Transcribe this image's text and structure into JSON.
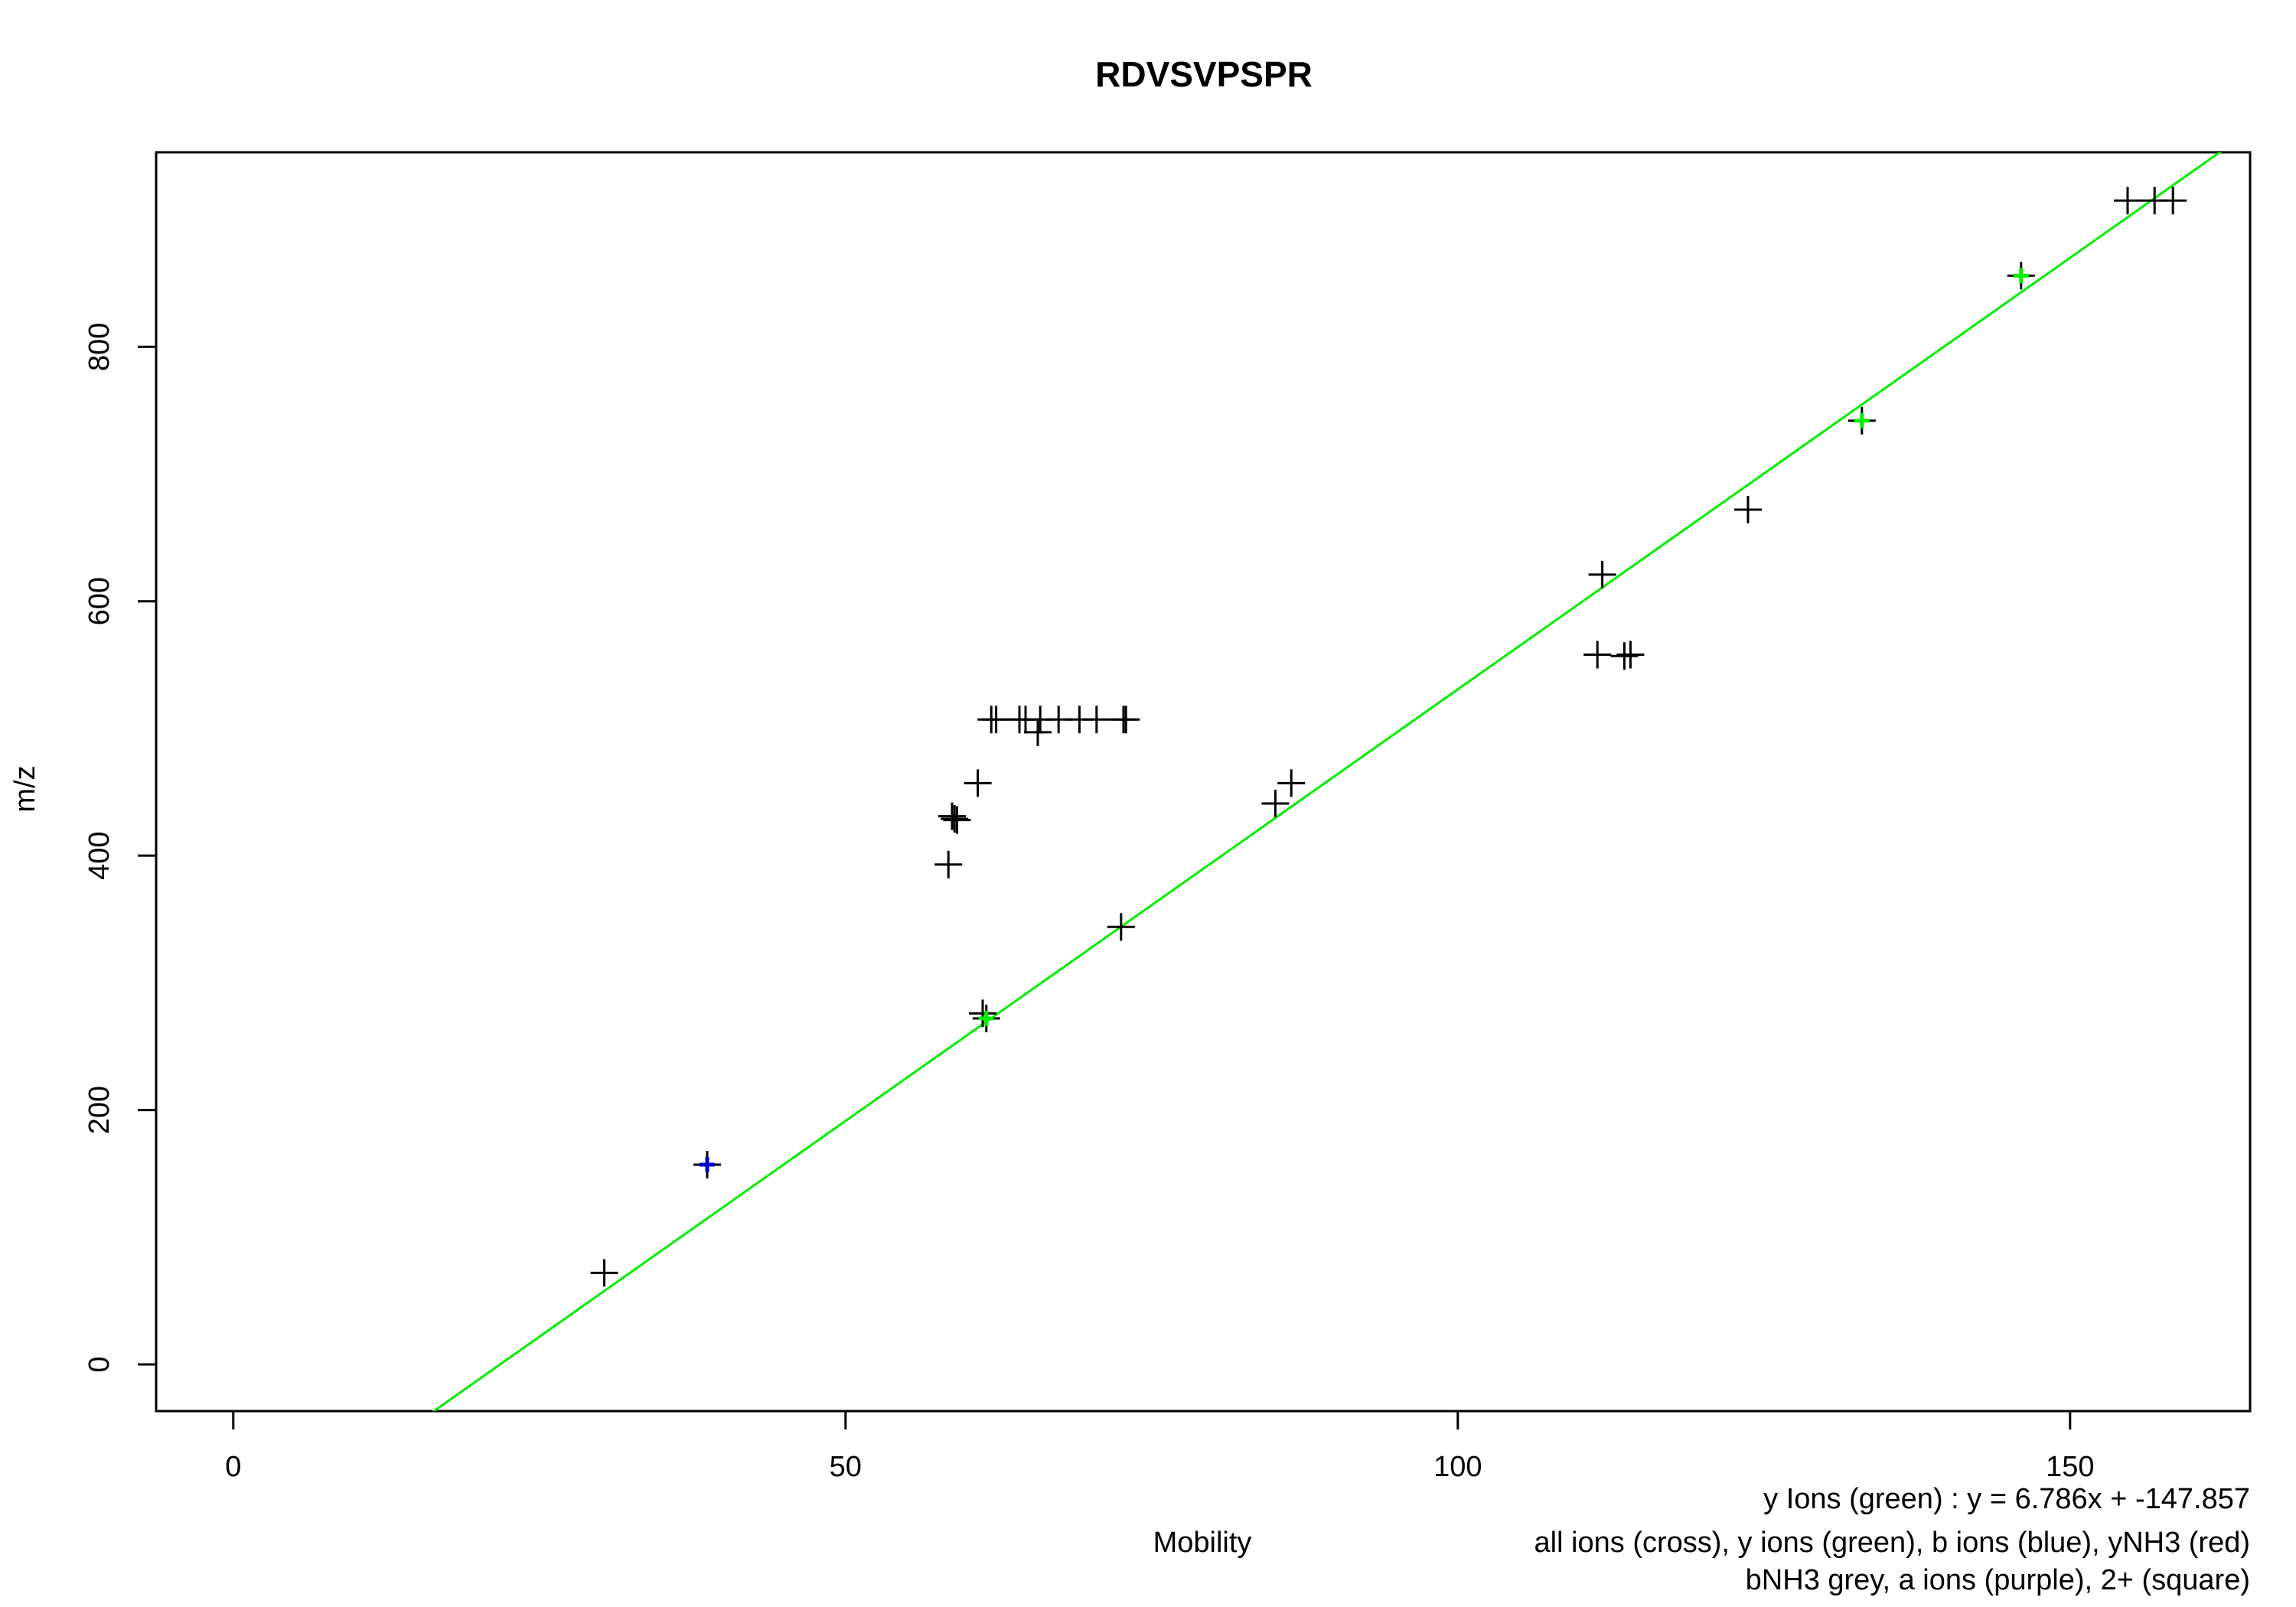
{
  "chart_data": {
    "type": "scatter",
    "title": "RDVSVPSPR",
    "x_label": "Mobility",
    "y_label": "m/z",
    "xlim": [
      -6.3,
      164.7
    ],
    "ylim": [
      -36.7,
      953
    ],
    "xticks": [
      0,
      50,
      100,
      150
    ],
    "yticks": [
      0,
      200,
      400,
      600,
      800
    ],
    "series": [
      {
        "color": "#000000",
        "x": [
          30.3,
          38.7,
          58.4,
          58.9,
          58.7,
          59.1,
          60.8,
          61.2,
          61.5,
          61.9,
          62.3,
          64.2,
          64.7,
          65.7,
          65.9,
          67.4,
          69.1,
          70.5,
          72.7,
          72.9,
          72.5,
          85.1,
          86.4,
          111.4,
          111.8,
          113.6,
          114.1,
          123.7,
          133.0,
          146.0,
          154.7,
          156.9,
          158.4
        ],
        "values": [
          72,
          157,
          393,
          429,
          431,
          428,
          457,
          276,
          272,
          507,
          507,
          507,
          507,
          497,
          507,
          507,
          507,
          507,
          507,
          507,
          344,
          441,
          457,
          558,
          621,
          557,
          558,
          672,
          742,
          856,
          915,
          915,
          915
        ]
      },
      {
        "color": "#00ee00",
        "x": [
          61.5,
          133.0,
          146.0
        ],
        "values": [
          272,
          742,
          856
        ]
      },
      {
        "color": "#0000cc",
        "x": [
          38.7
        ],
        "values": [
          157
        ]
      }
    ],
    "fit_line": {
      "slope": 6.786,
      "intercept": -147.857,
      "color": "#00ee00"
    },
    "annotations": [
      "y Ions (green) : y = 6.786x + -147.857",
      "all ions (cross), y ions (green), b ions (blue), yNH3 (red)",
      "bNH3 grey, a ions (purple), 2+ (square)"
    ]
  }
}
